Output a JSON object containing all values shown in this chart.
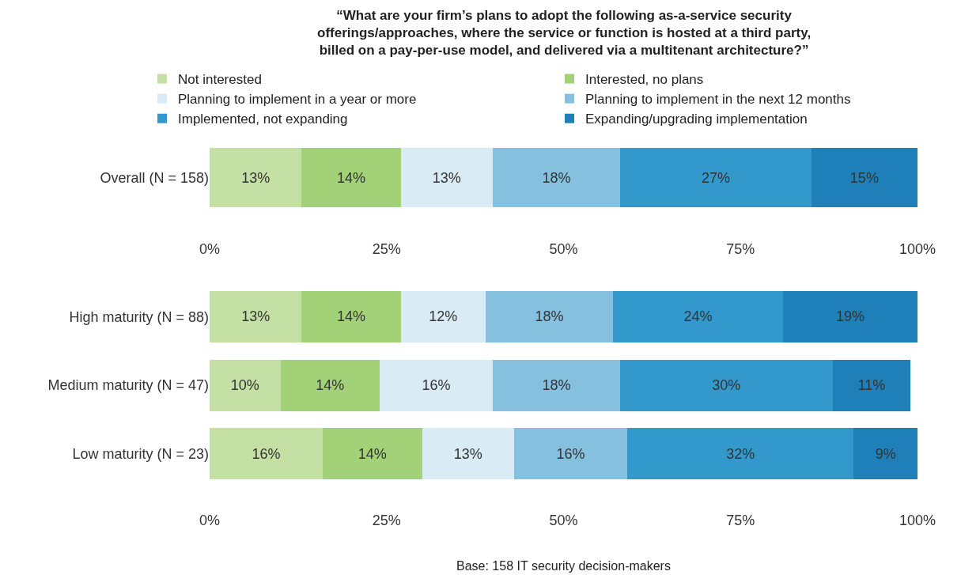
{
  "chart_data": [
    {
      "type": "bar",
      "orientation": "horizontal",
      "stacked": true,
      "title": "“What are your firm’s plans to adopt the following as-a-service security offerings/approaches, where the service or function is hosted at a third party, billed on a pay-per-use model, and delivered via a multitenant architecture?”",
      "categories": [
        "Overall (N = 158)"
      ],
      "series": [
        {
          "name": "Not interested",
          "color": "#c5e0a5",
          "values": [
            13
          ],
          "value_labels": [
            "13%"
          ]
        },
        {
          "name": "Interested, no plans",
          "color": "#a2d177",
          "values": [
            14
          ],
          "value_labels": [
            "14%"
          ]
        },
        {
          "name": "Planning to implement in a year or more",
          "color": "#d9ebf5",
          "values": [
            13
          ],
          "value_labels": [
            "13%"
          ]
        },
        {
          "name": "Planning to implement in the next 12 months",
          "color": "#85c1df",
          "values": [
            18
          ],
          "value_labels": [
            "18%"
          ]
        },
        {
          "name": "Implemented, not expanding",
          "color": "#3399cc",
          "values": [
            27
          ],
          "value_labels": [
            "27%"
          ]
        },
        {
          "name": "Expanding/upgrading implementation",
          "color": "#1f7fb8",
          "values": [
            15
          ],
          "value_labels": [
            "15%"
          ]
        }
      ],
      "xlim": [
        0,
        100
      ],
      "xticks": [
        {
          "value": 0,
          "label": "0%"
        },
        {
          "value": 25,
          "label": "25%"
        },
        {
          "value": 50,
          "label": "50%"
        },
        {
          "value": 75,
          "label": "75%"
        },
        {
          "value": 100,
          "label": "100%"
        }
      ],
      "legend": "top"
    },
    {
      "type": "bar",
      "orientation": "horizontal",
      "stacked": true,
      "categories": [
        "High maturity (N = 88)",
        "Medium maturity (N = 47)",
        "Low maturity (N = 23)"
      ],
      "series": [
        {
          "color": "#c5e0a5",
          "values": [
            13,
            10,
            16
          ],
          "value_labels": [
            "13%",
            "10%",
            "16%"
          ]
        },
        {
          "color": "#a2d177",
          "values": [
            14,
            14,
            14
          ],
          "value_labels": [
            "14%",
            "14%",
            "14%"
          ]
        },
        {
          "color": "#d9ebf5",
          "values": [
            12,
            16,
            13
          ],
          "value_labels": [
            "12%",
            "16%",
            "13%"
          ]
        },
        {
          "color": "#85c1df",
          "values": [
            18,
            18,
            16
          ],
          "value_labels": [
            "18%",
            "18%",
            "16%"
          ]
        },
        {
          "color": "#3399cc",
          "values": [
            24,
            30,
            32
          ],
          "value_labels": [
            "24%",
            "30%",
            "32%"
          ]
        },
        {
          "color": "#1f7fb8",
          "values": [
            19,
            11,
            9
          ],
          "value_labels": [
            "19%",
            "11%",
            "9%"
          ]
        }
      ],
      "xlim": [
        0,
        100
      ],
      "xticks": [
        {
          "value": 0,
          "label": "0%"
        },
        {
          "value": 25,
          "label": "25%"
        },
        {
          "value": 50,
          "label": "50%"
        },
        {
          "value": 75,
          "label": "75%"
        },
        {
          "value": 100,
          "label": "100%"
        }
      ],
      "annotations": [
        "Base: 158 IT security decision-makers"
      ]
    }
  ]
}
